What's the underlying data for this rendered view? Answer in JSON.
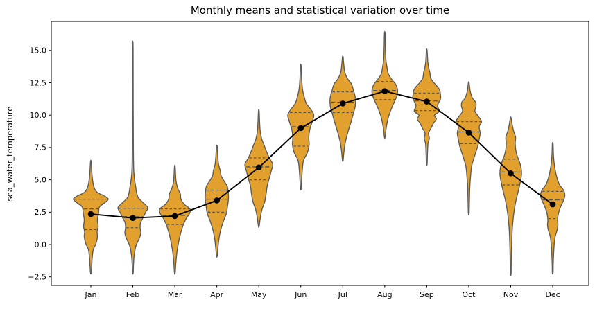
{
  "chart": {
    "title": "Monthly means and statistical variation over time",
    "ylabel": "sea_water_temperature"
  },
  "chart_data": {
    "type": "violin",
    "title": "Monthly means and statistical variation over time",
    "xlabel": "",
    "ylabel": "sea_water_temperature",
    "categories": [
      "Jan",
      "Feb",
      "Mar",
      "Apr",
      "May",
      "Jun",
      "Jul",
      "Aug",
      "Sep",
      "Oct",
      "Nov",
      "Dec"
    ],
    "ylim": [
      -3.2,
      17.2
    ],
    "grid": false,
    "legend": "none",
    "yticks": [
      {
        "value": 15.0,
        "label": "15.0"
      },
      {
        "value": 12.5,
        "label": "12.5"
      },
      {
        "value": 10.0,
        "label": "10.0"
      },
      {
        "value": 7.5,
        "label": "7.5"
      },
      {
        "value": 5.0,
        "label": "5.0"
      },
      {
        "value": 2.5,
        "label": "2.5"
      },
      {
        "value": 0.0,
        "label": "0.0"
      },
      {
        "value": -2.5,
        "label": "−2.5"
      }
    ],
    "mean_series": {
      "name": "monthly mean",
      "type": "line",
      "marker": "circle",
      "values": [
        2.35,
        2.05,
        2.2,
        3.4,
        5.95,
        9.0,
        10.9,
        11.85,
        11.05,
        8.65,
        5.5,
        3.1
      ]
    },
    "violins": [
      {
        "month": "Jan",
        "mean": 2.35,
        "median": 2.75,
        "q1": 1.15,
        "q3": 3.5,
        "min": -2.2,
        "max": 6.4,
        "profile": [
          [
            -2.2,
            0.02
          ],
          [
            -1.6,
            0.05
          ],
          [
            -1.0,
            0.08
          ],
          [
            -0.4,
            0.14
          ],
          [
            0.1,
            0.3
          ],
          [
            0.6,
            0.38
          ],
          [
            1.0,
            0.36
          ],
          [
            1.4,
            0.42
          ],
          [
            1.9,
            0.38
          ],
          [
            2.4,
            0.44
          ],
          [
            2.9,
            0.5
          ],
          [
            3.2,
            0.78
          ],
          [
            3.5,
            1.0
          ],
          [
            3.75,
            0.78
          ],
          [
            4.0,
            0.4
          ],
          [
            4.3,
            0.22
          ],
          [
            4.8,
            0.12
          ],
          [
            5.5,
            0.06
          ],
          [
            6.4,
            0.02
          ]
        ]
      },
      {
        "month": "Feb",
        "mean": 2.05,
        "median": 2.15,
        "q1": 1.3,
        "q3": 2.8,
        "min": -2.2,
        "max": 15.2,
        "profile": [
          [
            -2.2,
            0.02
          ],
          [
            -1.5,
            0.04
          ],
          [
            -0.8,
            0.08
          ],
          [
            -0.1,
            0.18
          ],
          [
            0.5,
            0.38
          ],
          [
            0.9,
            0.46
          ],
          [
            1.3,
            0.42
          ],
          [
            1.7,
            0.45
          ],
          [
            2.1,
            0.6
          ],
          [
            2.5,
            0.74
          ],
          [
            2.85,
            0.86
          ],
          [
            3.2,
            0.62
          ],
          [
            3.6,
            0.32
          ],
          [
            4.0,
            0.22
          ],
          [
            4.5,
            0.16
          ],
          [
            5.0,
            0.1
          ],
          [
            5.8,
            0.05
          ],
          [
            7.5,
            0.03
          ],
          [
            11.0,
            0.02
          ],
          [
            15.2,
            0.015
          ]
        ]
      },
      {
        "month": "Mar",
        "mean": 2.2,
        "median": 2.25,
        "q1": 1.55,
        "q3": 2.75,
        "min": -2.2,
        "max": 6.0,
        "profile": [
          [
            -2.2,
            0.02
          ],
          [
            -1.4,
            0.06
          ],
          [
            -0.6,
            0.12
          ],
          [
            0.2,
            0.22
          ],
          [
            0.9,
            0.34
          ],
          [
            1.5,
            0.48
          ],
          [
            2.0,
            0.65
          ],
          [
            2.4,
            0.85
          ],
          [
            2.75,
            0.87
          ],
          [
            3.1,
            0.55
          ],
          [
            3.5,
            0.35
          ],
          [
            3.9,
            0.32
          ],
          [
            4.3,
            0.18
          ],
          [
            4.9,
            0.07
          ],
          [
            6.0,
            0.02
          ]
        ]
      },
      {
        "month": "Apr",
        "mean": 3.4,
        "median": 3.5,
        "q1": 2.5,
        "q3": 4.2,
        "min": -0.9,
        "max": 7.6,
        "profile": [
          [
            -0.9,
            0.02
          ],
          [
            -0.3,
            0.06
          ],
          [
            0.4,
            0.12
          ],
          [
            1.1,
            0.22
          ],
          [
            1.8,
            0.38
          ],
          [
            2.4,
            0.55
          ],
          [
            3.0,
            0.62
          ],
          [
            3.5,
            0.67
          ],
          [
            4.0,
            0.66
          ],
          [
            4.5,
            0.6
          ],
          [
            4.9,
            0.42
          ],
          [
            5.3,
            0.25
          ],
          [
            5.7,
            0.2
          ],
          [
            6.2,
            0.1
          ],
          [
            6.9,
            0.05
          ],
          [
            7.6,
            0.02
          ]
        ]
      },
      {
        "month": "May",
        "mean": 5.95,
        "median": 6.0,
        "q1": 5.0,
        "q3": 6.7,
        "min": 1.4,
        "max": 10.3,
        "profile": [
          [
            1.4,
            0.02
          ],
          [
            2.0,
            0.08
          ],
          [
            2.7,
            0.18
          ],
          [
            3.3,
            0.34
          ],
          [
            3.9,
            0.42
          ],
          [
            4.5,
            0.48
          ],
          [
            5.1,
            0.6
          ],
          [
            5.7,
            0.72
          ],
          [
            6.2,
            0.8
          ],
          [
            6.7,
            0.6
          ],
          [
            7.2,
            0.44
          ],
          [
            7.7,
            0.3
          ],
          [
            8.2,
            0.16
          ],
          [
            8.9,
            0.07
          ],
          [
            10.3,
            0.02
          ]
        ]
      },
      {
        "month": "Jun",
        "mean": 9.0,
        "median": 9.1,
        "q1": 7.6,
        "q3": 10.2,
        "min": 4.3,
        "max": 13.8,
        "profile": [
          [
            4.3,
            0.02
          ],
          [
            5.0,
            0.05
          ],
          [
            5.8,
            0.09
          ],
          [
            6.5,
            0.16
          ],
          [
            7.1,
            0.38
          ],
          [
            7.7,
            0.48
          ],
          [
            8.3,
            0.46
          ],
          [
            8.9,
            0.52
          ],
          [
            9.5,
            0.66
          ],
          [
            10.0,
            0.75
          ],
          [
            10.4,
            0.6
          ],
          [
            10.9,
            0.32
          ],
          [
            11.4,
            0.2
          ],
          [
            12.0,
            0.1
          ],
          [
            12.8,
            0.05
          ],
          [
            13.8,
            0.02
          ]
        ]
      },
      {
        "month": "Jul",
        "mean": 10.9,
        "median": 11.0,
        "q1": 10.2,
        "q3": 11.8,
        "min": 6.5,
        "max": 14.5,
        "profile": [
          [
            6.5,
            0.02
          ],
          [
            7.2,
            0.07
          ],
          [
            8.0,
            0.16
          ],
          [
            8.8,
            0.32
          ],
          [
            9.5,
            0.48
          ],
          [
            10.1,
            0.6
          ],
          [
            10.7,
            0.72
          ],
          [
            11.3,
            0.73
          ],
          [
            11.9,
            0.62
          ],
          [
            12.4,
            0.5
          ],
          [
            12.8,
            0.28
          ],
          [
            13.3,
            0.12
          ],
          [
            14.0,
            0.05
          ],
          [
            14.5,
            0.02
          ]
        ]
      },
      {
        "month": "Aug",
        "mean": 11.85,
        "median": 11.9,
        "q1": 11.2,
        "q3": 12.6,
        "min": 8.3,
        "max": 16.3,
        "profile": [
          [
            8.3,
            0.02
          ],
          [
            9.0,
            0.08
          ],
          [
            9.8,
            0.2
          ],
          [
            10.5,
            0.38
          ],
          [
            11.1,
            0.58
          ],
          [
            11.6,
            0.72
          ],
          [
            12.0,
            0.73
          ],
          [
            12.4,
            0.62
          ],
          [
            12.8,
            0.38
          ],
          [
            13.2,
            0.2
          ],
          [
            13.6,
            0.14
          ],
          [
            14.2,
            0.07
          ],
          [
            15.0,
            0.04
          ],
          [
            16.3,
            0.02
          ]
        ]
      },
      {
        "month": "Sep",
        "mean": 11.05,
        "median": 11.1,
        "q1": 10.35,
        "q3": 11.7,
        "min": 6.2,
        "max": 15.0,
        "profile": [
          [
            6.2,
            0.02
          ],
          [
            7.0,
            0.04
          ],
          [
            7.8,
            0.07
          ],
          [
            8.2,
            0.15
          ],
          [
            8.6,
            0.1
          ],
          [
            9.0,
            0.25
          ],
          [
            9.4,
            0.4
          ],
          [
            9.7,
            0.55
          ],
          [
            10.0,
            0.45
          ],
          [
            10.3,
            0.72
          ],
          [
            10.7,
            0.62
          ],
          [
            11.0,
            0.7
          ],
          [
            11.3,
            0.8
          ],
          [
            11.7,
            0.78
          ],
          [
            12.0,
            0.72
          ],
          [
            12.3,
            0.55
          ],
          [
            12.6,
            0.35
          ],
          [
            12.9,
            0.22
          ],
          [
            13.3,
            0.18
          ],
          [
            13.6,
            0.12
          ],
          [
            14.1,
            0.06
          ],
          [
            15.0,
            0.02
          ]
        ]
      },
      {
        "month": "Oct",
        "mean": 8.65,
        "median": 8.7,
        "q1": 7.8,
        "q3": 9.5,
        "min": 2.4,
        "max": 12.5,
        "profile": [
          [
            2.4,
            0.02
          ],
          [
            3.4,
            0.04
          ],
          [
            4.4,
            0.06
          ],
          [
            5.2,
            0.1
          ],
          [
            6.0,
            0.16
          ],
          [
            6.6,
            0.28
          ],
          [
            7.1,
            0.4
          ],
          [
            7.6,
            0.52
          ],
          [
            8.0,
            0.58
          ],
          [
            8.6,
            0.66
          ],
          [
            9.1,
            0.6
          ],
          [
            9.5,
            0.74
          ],
          [
            9.9,
            0.56
          ],
          [
            10.3,
            0.36
          ],
          [
            10.7,
            0.42
          ],
          [
            11.0,
            0.4
          ],
          [
            11.3,
            0.22
          ],
          [
            11.8,
            0.09
          ],
          [
            12.5,
            0.02
          ]
        ]
      },
      {
        "month": "Nov",
        "mean": 5.5,
        "median": 5.6,
        "q1": 4.6,
        "q3": 6.6,
        "min": -2.3,
        "max": 9.8,
        "profile": [
          [
            -2.3,
            0.02
          ],
          [
            -1.5,
            0.03
          ],
          [
            -0.6,
            0.04
          ],
          [
            0.3,
            0.06
          ],
          [
            1.2,
            0.09
          ],
          [
            2.0,
            0.14
          ],
          [
            2.8,
            0.22
          ],
          [
            3.5,
            0.32
          ],
          [
            4.2,
            0.45
          ],
          [
            4.8,
            0.55
          ],
          [
            5.4,
            0.62
          ],
          [
            5.9,
            0.6
          ],
          [
            6.4,
            0.5
          ],
          [
            6.9,
            0.36
          ],
          [
            7.4,
            0.28
          ],
          [
            7.9,
            0.26
          ],
          [
            8.3,
            0.28
          ],
          [
            8.8,
            0.16
          ],
          [
            9.3,
            0.08
          ],
          [
            9.8,
            0.02
          ]
        ]
      },
      {
        "month": "Dec",
        "mean": 3.1,
        "median": 3.45,
        "q1": 2.0,
        "q3": 4.1,
        "min": -2.2,
        "max": 7.8,
        "profile": [
          [
            -2.2,
            0.02
          ],
          [
            -1.5,
            0.03
          ],
          [
            -0.8,
            0.05
          ],
          [
            -0.1,
            0.08
          ],
          [
            0.6,
            0.14
          ],
          [
            1.1,
            0.25
          ],
          [
            1.5,
            0.3
          ],
          [
            1.9,
            0.28
          ],
          [
            2.4,
            0.33
          ],
          [
            2.9,
            0.45
          ],
          [
            3.4,
            0.62
          ],
          [
            3.8,
            0.7
          ],
          [
            4.2,
            0.62
          ],
          [
            4.6,
            0.4
          ],
          [
            5.0,
            0.28
          ],
          [
            5.5,
            0.18
          ],
          [
            6.2,
            0.09
          ],
          [
            7.0,
            0.04
          ],
          [
            7.8,
            0.02
          ]
        ]
      }
    ],
    "colors": {
      "violin_fill": "#E2A02F",
      "violin_edge": "#5C5C5C",
      "inner_line": "#565656",
      "mean_line": "#000000",
      "mean_marker": "#000000",
      "axis": "#000000",
      "background": "#FFFFFF"
    }
  }
}
